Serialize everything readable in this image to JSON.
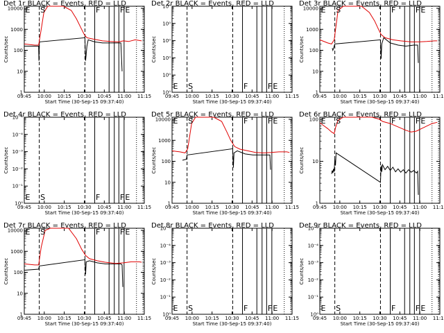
{
  "chart_data": [
    {
      "type": "line",
      "title": "Det 1r BLACK = Events, RED = LLD",
      "ylabel": "Counts/sec",
      "xlabel": "Start Time (30-Sep-15 09:37:40)",
      "yticks": [
        "1",
        "10",
        "100",
        "1000",
        "10000"
      ],
      "log_range": [
        0,
        4.1
      ],
      "xticks": [
        "09:45",
        "10:00",
        "10:15",
        "10:30",
        "10:45",
        "11:00",
        "11:15"
      ],
      "markers": [
        {
          "label": "E",
          "t": 0
        },
        {
          "label": "S",
          "t": 11.5
        },
        {
          "label": "F",
          "t": 54
        },
        {
          "label": "F",
          "t": 72.5
        },
        {
          "label": "E",
          "t": 76.5
        }
      ],
      "dashed": [
        11.5,
        46.5
      ],
      "solid": [
        54,
        65,
        69,
        72.5,
        76.5
      ],
      "dotted": [
        86,
        91
      ],
      "red": [
        [
          0,
          2.3
        ],
        [
          8,
          2.25
        ],
        [
          11,
          2.25
        ],
        [
          13,
          3.0
        ],
        [
          15,
          3.8
        ],
        [
          18,
          4.3
        ],
        [
          25,
          4.3
        ],
        [
          30,
          4.2
        ],
        [
          36,
          3.9
        ],
        [
          40,
          3.5
        ],
        [
          44,
          3.0
        ],
        [
          46,
          2.75
        ],
        [
          48,
          2.6
        ],
        [
          54,
          2.52
        ],
        [
          60,
          2.45
        ],
        [
          66,
          2.42
        ],
        [
          72,
          2.4
        ],
        [
          76,
          2.45
        ],
        [
          80,
          2.42
        ],
        [
          85,
          2.5
        ],
        [
          90,
          2.45
        ]
      ],
      "black": [
        [
          0,
          2.2
        ],
        [
          11,
          2.2
        ],
        [
          11.2,
          1.5
        ],
        [
          11.6,
          2.4
        ],
        [
          46.5,
          2.6
        ],
        [
          47,
          1.5
        ],
        [
          48,
          2.2
        ],
        [
          49,
          2.5
        ],
        [
          54,
          2.4
        ],
        [
          60,
          2.35
        ],
        [
          66,
          2.35
        ],
        [
          72,
          2.35
        ],
        [
          74,
          2.35
        ],
        [
          75,
          1.0
        ]
      ]
    },
    {
      "type": "line",
      "title": "Det 2r BLACK = Events, RED = LLD",
      "ylabel": "Counts/sec",
      "xlabel": "Start Time (30-Sep-15 09:37:40)",
      "yticks": [
        "10⁰",
        "10⁰",
        "10⁰",
        "10⁰",
        "10⁰",
        "10⁰"
      ],
      "log_range": [
        0,
        5
      ],
      "xticks": [
        "09:45",
        "10:00",
        "10:15",
        "10:30",
        "10:45",
        "11:00",
        "11:15"
      ],
      "markers": [
        {
          "label": "E",
          "t": 0
        },
        {
          "label": "S",
          "t": 11.5
        },
        {
          "label": "F",
          "t": 54
        },
        {
          "label": "F",
          "t": 72.5
        },
        {
          "label": "E",
          "t": 76.5
        }
      ],
      "dashed": [
        11.5,
        46.5
      ],
      "solid": [
        54,
        65,
        69,
        72.5,
        76.5
      ],
      "dotted": [
        86,
        91
      ],
      "red": [],
      "black": []
    },
    {
      "type": "line",
      "title": "Det 3r BLACK = Events, RED = LLD",
      "ylabel": "Counts/sec",
      "xlabel": "Start Time (30-Sep-15 09:37:40)",
      "yticks": [
        "1",
        "10",
        "100",
        "1000",
        "10000"
      ],
      "log_range": [
        0,
        4.1
      ],
      "xticks": [
        "09:45",
        "10:00",
        "10:15",
        "10:30",
        "10:45",
        "11:00",
        "11:15"
      ],
      "markers": [
        {
          "label": "E",
          "t": 0
        },
        {
          "label": "S",
          "t": 11.5
        },
        {
          "label": "F",
          "t": 54
        },
        {
          "label": "F",
          "t": 72.5
        },
        {
          "label": "E",
          "t": 76.5
        }
      ],
      "dashed": [
        11.5,
        46.5
      ],
      "solid": [
        54,
        65,
        69,
        72.5,
        76.5
      ],
      "dotted": [
        86,
        91
      ],
      "red": [
        [
          0,
          2.5
        ],
        [
          6,
          2.35
        ],
        [
          9,
          2.3
        ],
        [
          11,
          2.5
        ],
        [
          14,
          3.9
        ],
        [
          18,
          4.3
        ],
        [
          26,
          4.3
        ],
        [
          32,
          4.15
        ],
        [
          38,
          3.8
        ],
        [
          42,
          3.4
        ],
        [
          45,
          3.0
        ],
        [
          47,
          2.75
        ],
        [
          50,
          2.6
        ],
        [
          56,
          2.5
        ],
        [
          62,
          2.45
        ],
        [
          70,
          2.4
        ],
        [
          76,
          2.4
        ],
        [
          82,
          2.42
        ],
        [
          88,
          2.45
        ],
        [
          90,
          2.45
        ]
      ],
      "black": [
        [
          9.5,
          2.1
        ],
        [
          10,
          2.0
        ],
        [
          11,
          2.2
        ],
        [
          11.5,
          2.3
        ],
        [
          46.5,
          2.5
        ],
        [
          47,
          1.6
        ],
        [
          47.5,
          2.3
        ],
        [
          49,
          2.6
        ],
        [
          54,
          2.35
        ],
        [
          60,
          2.25
        ],
        [
          66,
          2.2
        ],
        [
          72,
          2.25
        ],
        [
          75,
          2.25
        ],
        [
          75.5,
          1.4
        ]
      ]
    },
    {
      "type": "line",
      "title": "Det 4r BLACK = Events, RED = LLD",
      "ylabel": "Counts/sec",
      "xlabel": "Start Time (30-Sep-15 09:37:40)",
      "yticks": [
        "10⁰",
        "10⁻¹",
        "10⁻²",
        "10⁻³",
        "10⁻⁴",
        "10⁻⁴"
      ],
      "log_range": [
        0,
        5
      ],
      "xticks": [
        "09:45",
        "10:00",
        "10:15",
        "10:30",
        "10:45",
        "11:00",
        "11:15"
      ],
      "markers": [
        {
          "label": "E",
          "t": 0
        },
        {
          "label": "S",
          "t": 11.5
        },
        {
          "label": "F",
          "t": 54
        },
        {
          "label": "F",
          "t": 72.5
        },
        {
          "label": "E",
          "t": 76.5
        }
      ],
      "dashed": [
        11.5,
        46.5
      ],
      "solid": [
        54,
        65,
        69,
        72.5,
        76.5
      ],
      "dotted": [
        86,
        91
      ],
      "red": [],
      "black": []
    },
    {
      "type": "line",
      "title": "Det 5r BLACK = Events, RED = LLD",
      "ylabel": "Counts/sec",
      "xlabel": "Start Time (30-Sep-15 09:37:40)",
      "yticks": [
        "1",
        "10",
        "100",
        "1000",
        "10000"
      ],
      "log_range": [
        0,
        4.1
      ],
      "xticks": [
        "09:45",
        "10:00",
        "10:15",
        "10:30",
        "10:45",
        "11:00",
        "11:15"
      ],
      "markers": [
        {
          "label": "E",
          "t": 0
        },
        {
          "label": "S",
          "t": 11.5
        },
        {
          "label": "F",
          "t": 54
        },
        {
          "label": "F",
          "t": 72.5
        },
        {
          "label": "E",
          "t": 76.5
        }
      ],
      "dashed": [
        11.5,
        46.5
      ],
      "solid": [
        54,
        65,
        69,
        72.5,
        76.5
      ],
      "dotted": [
        86,
        91
      ],
      "red": [
        [
          0,
          2.5
        ],
        [
          6,
          2.45
        ],
        [
          10,
          2.4
        ],
        [
          12,
          2.6
        ],
        [
          15,
          3.8
        ],
        [
          18,
          4.2
        ],
        [
          26,
          4.25
        ],
        [
          32,
          4.2
        ],
        [
          38,
          3.9
        ],
        [
          42,
          3.4
        ],
        [
          45,
          3.0
        ],
        [
          48,
          2.7
        ],
        [
          52,
          2.58
        ],
        [
          58,
          2.5
        ],
        [
          64,
          2.42
        ],
        [
          70,
          2.4
        ],
        [
          76,
          2.42
        ],
        [
          82,
          2.45
        ],
        [
          88,
          2.45
        ],
        [
          90,
          2.42
        ]
      ],
      "black": [
        [
          8,
          2.05
        ],
        [
          11,
          2.1
        ],
        [
          11.5,
          2.3
        ],
        [
          46.5,
          2.6
        ],
        [
          47,
          1.7
        ],
        [
          47.5,
          2.4
        ],
        [
          50,
          2.5
        ],
        [
          56,
          2.35
        ],
        [
          62,
          2.3
        ],
        [
          68,
          2.3
        ],
        [
          74,
          2.3
        ],
        [
          75,
          2.3
        ],
        [
          75.5,
          1.6
        ]
      ]
    },
    {
      "type": "line",
      "title": "Det 6r BLACK = Events, RED = LLD",
      "ylabel": "Counts/sec",
      "xlabel": "Start Time (30-Sep-15 09:37:40)",
      "yticks": [
        "1",
        "10",
        "100"
      ],
      "log_range": [
        0,
        2.05
      ],
      "xticks": [
        "09:45",
        "10:00",
        "10:15",
        "10:30",
        "10:45",
        "11:00",
        "11:15"
      ],
      "markers": [
        {
          "label": "E",
          "t": 0
        },
        {
          "label": "S",
          "t": 11.5
        },
        {
          "label": "F",
          "t": 54
        },
        {
          "label": "F",
          "t": 72.5
        },
        {
          "label": "E",
          "t": 76.5
        }
      ],
      "dashed": [
        11.5,
        46.5
      ],
      "solid": [
        54,
        65,
        69,
        72.5,
        76.5
      ],
      "dotted": [
        86,
        91
      ],
      "red": [
        [
          0,
          1.92
        ],
        [
          3,
          1.85
        ],
        [
          6,
          1.78
        ],
        [
          9,
          1.7
        ],
        [
          11,
          1.66
        ],
        [
          12,
          1.8
        ],
        [
          14,
          1.98
        ],
        [
          18,
          2.05
        ],
        [
          30,
          2.05
        ],
        [
          40,
          2.05
        ],
        [
          46,
          2.0
        ],
        [
          48,
          1.95
        ],
        [
          54,
          1.9
        ],
        [
          60,
          1.82
        ],
        [
          66,
          1.74
        ],
        [
          70,
          1.7
        ],
        [
          74,
          1.72
        ],
        [
          78,
          1.78
        ],
        [
          82,
          1.84
        ],
        [
          86,
          1.9
        ],
        [
          90,
          1.93
        ]
      ],
      "black": [
        [
          9,
          0.7
        ],
        [
          9.5,
          0.78
        ],
        [
          10,
          0.72
        ],
        [
          10.5,
          0.82
        ],
        [
          11,
          0.75
        ],
        [
          11.5,
          1.05
        ],
        [
          12,
          0.9
        ],
        [
          12.5,
          1.2
        ],
        [
          46.5,
          0.5
        ],
        [
          47,
          0.9
        ],
        [
          47.5,
          0.75
        ],
        [
          48,
          0.92
        ],
        [
          50,
          0.8
        ],
        [
          52,
          0.88
        ],
        [
          54,
          0.78
        ],
        [
          56,
          0.86
        ],
        [
          58,
          0.75
        ],
        [
          60,
          0.82
        ],
        [
          62,
          0.74
        ],
        [
          64,
          0.8
        ],
        [
          66,
          0.72
        ],
        [
          68,
          0.8
        ],
        [
          70,
          0.74
        ],
        [
          72,
          0.78
        ],
        [
          74,
          0.72
        ],
        [
          75,
          0.76
        ],
        [
          75.5,
          0.2
        ]
      ]
    },
    {
      "type": "line",
      "title": "Det 7r BLACK = Events, RED = LLD",
      "ylabel": "Counts/sec",
      "xlabel": "Start Time (30-Sep-15 09:37:40)",
      "yticks": [
        "1",
        "10",
        "100",
        "1000",
        "10000"
      ],
      "log_range": [
        0,
        4.1
      ],
      "xticks": [
        "09:45",
        "10:00",
        "10:15",
        "10:30",
        "10:45",
        "11:00",
        "11:15"
      ],
      "markers": [
        {
          "label": "E",
          "t": 0
        },
        {
          "label": "S",
          "t": 11.5
        },
        {
          "label": "F",
          "t": 54
        },
        {
          "label": "F",
          "t": 72.5
        },
        {
          "label": "E",
          "t": 76.5
        }
      ],
      "dashed": [
        11.5,
        46.5
      ],
      "solid": [
        54,
        65,
        69,
        72.5,
        76.5
      ],
      "dotted": [
        86,
        91
      ],
      "red": [
        [
          0,
          2.4
        ],
        [
          8,
          2.35
        ],
        [
          11,
          2.35
        ],
        [
          13,
          3.2
        ],
        [
          16,
          4.0
        ],
        [
          20,
          4.3
        ],
        [
          28,
          4.3
        ],
        [
          34,
          4.1
        ],
        [
          40,
          3.6
        ],
        [
          44,
          3.1
        ],
        [
          47,
          2.8
        ],
        [
          50,
          2.65
        ],
        [
          56,
          2.55
        ],
        [
          62,
          2.48
        ],
        [
          70,
          2.42
        ],
        [
          76,
          2.45
        ],
        [
          82,
          2.5
        ],
        [
          88,
          2.5
        ],
        [
          90,
          2.48
        ]
      ],
      "black": [
        [
          0,
          2.1
        ],
        [
          11,
          2.15
        ],
        [
          11.5,
          2.3
        ],
        [
          46.5,
          2.6
        ],
        [
          47,
          1.9
        ],
        [
          47.5,
          2.5
        ],
        [
          50,
          2.55
        ],
        [
          56,
          2.45
        ],
        [
          62,
          2.4
        ],
        [
          70,
          2.4
        ],
        [
          74,
          2.4
        ],
        [
          75,
          2.35
        ],
        [
          75.5,
          1.3
        ]
      ]
    },
    {
      "type": "line",
      "title": "Det 8r BLACK = Events, RED = LLD",
      "ylabel": "Counts/sec",
      "xlabel": "Start Time (30-Sep-15 09:37:40)",
      "yticks": [
        "10⁰",
        "10⁻¹",
        "10⁻²",
        "10⁻³",
        "10⁻⁴",
        "10⁻⁴"
      ],
      "log_range": [
        0,
        5
      ],
      "xticks": [
        "09:45",
        "10:00",
        "10:15",
        "10:30",
        "10:45",
        "11:00",
        "11:15"
      ],
      "markers": [
        {
          "label": "E",
          "t": 0
        },
        {
          "label": "S",
          "t": 11.5
        },
        {
          "label": "F",
          "t": 54
        },
        {
          "label": "F",
          "t": 72.5
        },
        {
          "label": "E",
          "t": 76.5
        }
      ],
      "dashed": [
        11.5,
        46.5
      ],
      "solid": [
        54,
        65,
        69,
        72.5,
        76.5
      ],
      "dotted": [
        86,
        91
      ],
      "red": [],
      "black": []
    },
    {
      "type": "line",
      "title": "Det 9r BLACK = Events, RED = LLD",
      "ylabel": "Counts/sec",
      "xlabel": "Start Time (30-Sep-15 09:37:40)",
      "yticks": [
        "10⁰",
        "10⁻¹",
        "10⁻²",
        "10⁻³",
        "10⁻⁴",
        "10⁻⁴"
      ],
      "log_range": [
        0,
        5
      ],
      "xticks": [
        "09:45",
        "10:00",
        "10:15",
        "10:30",
        "10:45",
        "11:00",
        "11:15"
      ],
      "markers": [
        {
          "label": "E",
          "t": 0
        },
        {
          "label": "S",
          "t": 11.5
        },
        {
          "label": "F",
          "t": 54
        },
        {
          "label": "F",
          "t": 72.5
        },
        {
          "label": "E",
          "t": 76.5
        }
      ],
      "dashed": [
        11.5,
        46.5
      ],
      "solid": [
        54,
        65,
        69,
        72.5,
        76.5
      ],
      "dotted": [
        86,
        91
      ],
      "red": [],
      "black": []
    }
  ],
  "colors": {
    "events": "#000000",
    "lld": "#e00000",
    "axes": "#000000",
    "background": "#ffffff"
  }
}
